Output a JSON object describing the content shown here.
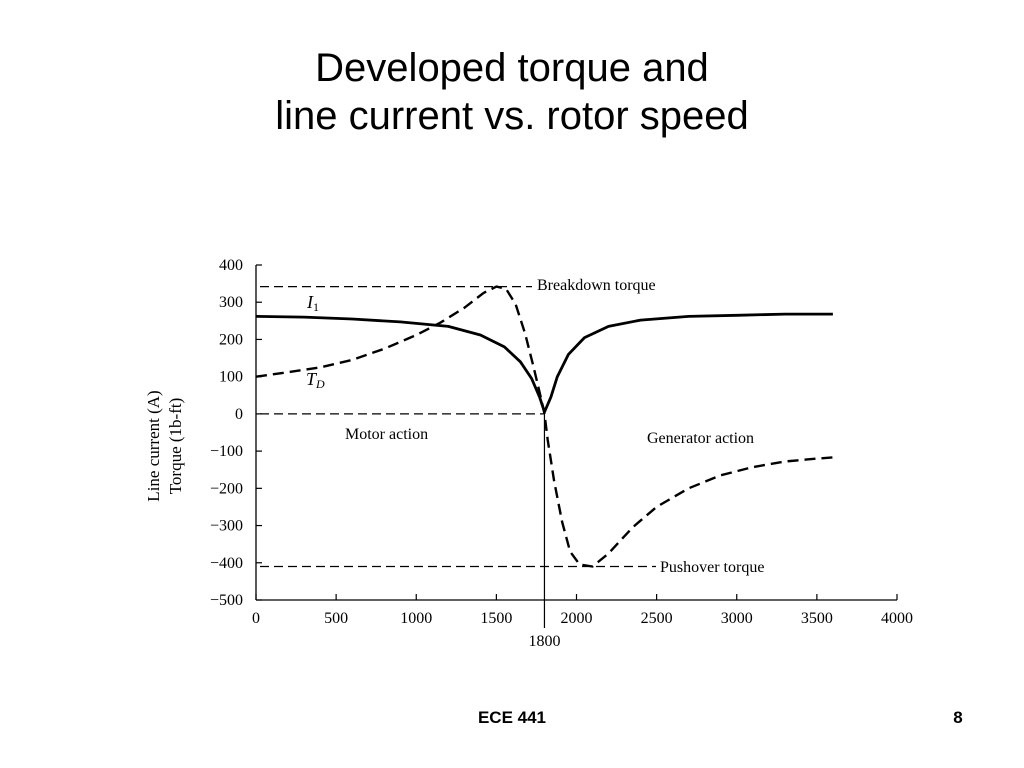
{
  "slide": {
    "title_line1": "Developed torque and",
    "title_line2": "line current vs. rotor speed",
    "footer_course": "ECE 441",
    "page_number": "8"
  },
  "chart_data": {
    "type": "line",
    "xlim": [
      0,
      4000
    ],
    "ylim": [
      -500,
      400
    ],
    "x_ticks": [
      "0",
      "500",
      "1000",
      "1500",
      "2000",
      "2500",
      "3000",
      "3500",
      "4000"
    ],
    "y_ticks": [
      "400",
      "300",
      "200",
      "100",
      "0",
      "−100",
      "−200",
      "−300",
      "−400",
      "−500"
    ],
    "ylabel_line1": "Line current (A)",
    "ylabel_line2": "Torque (1b-ft)",
    "sync_speed_label": "1800",
    "sync_speed": 1800,
    "series": [
      {
        "name": "I1",
        "style": "solid",
        "points": [
          [
            0,
            262
          ],
          [
            300,
            260
          ],
          [
            600,
            255
          ],
          [
            900,
            247
          ],
          [
            1200,
            235
          ],
          [
            1400,
            212
          ],
          [
            1550,
            180
          ],
          [
            1650,
            140
          ],
          [
            1720,
            95
          ],
          [
            1770,
            45
          ],
          [
            1800,
            5
          ],
          [
            1840,
            45
          ],
          [
            1880,
            100
          ],
          [
            1950,
            160
          ],
          [
            2050,
            205
          ],
          [
            2200,
            235
          ],
          [
            2400,
            252
          ],
          [
            2700,
            262
          ],
          [
            3000,
            265
          ],
          [
            3300,
            268
          ],
          [
            3600,
            268
          ]
        ]
      },
      {
        "name": "TD",
        "style": "dashed",
        "points": [
          [
            0,
            100
          ],
          [
            200,
            112
          ],
          [
            400,
            125
          ],
          [
            600,
            145
          ],
          [
            800,
            175
          ],
          [
            1000,
            212
          ],
          [
            1150,
            245
          ],
          [
            1300,
            285
          ],
          [
            1420,
            325
          ],
          [
            1500,
            342
          ],
          [
            1560,
            336
          ],
          [
            1620,
            295
          ],
          [
            1680,
            215
          ],
          [
            1730,
            130
          ],
          [
            1780,
            40
          ],
          [
            1800,
            0
          ],
          [
            1820,
            -70
          ],
          [
            1860,
            -180
          ],
          [
            1910,
            -290
          ],
          [
            1960,
            -370
          ],
          [
            2020,
            -405
          ],
          [
            2100,
            -410
          ],
          [
            2200,
            -375
          ],
          [
            2350,
            -305
          ],
          [
            2500,
            -250
          ],
          [
            2700,
            -200
          ],
          [
            2900,
            -165
          ],
          [
            3100,
            -143
          ],
          [
            3300,
            -128
          ],
          [
            3500,
            -120
          ],
          [
            3600,
            -117
          ]
        ]
      }
    ],
    "reference_lines": [
      {
        "y": 342,
        "x_end": 1500,
        "label": "Breakdown torque"
      },
      {
        "y": 0,
        "x_end": 1800,
        "label": ""
      },
      {
        "y": -410,
        "x_end": 2100,
        "label": "Pushover torque"
      }
    ],
    "annotations": {
      "i1_label_main": "I",
      "i1_label_sub": "1",
      "td_label_main": "T",
      "td_label_sub": "D",
      "motor_action": "Motor action",
      "generator_action": "Generator action",
      "breakdown_torque": "Breakdown torque",
      "pushover_torque": "Pushover torque"
    }
  }
}
